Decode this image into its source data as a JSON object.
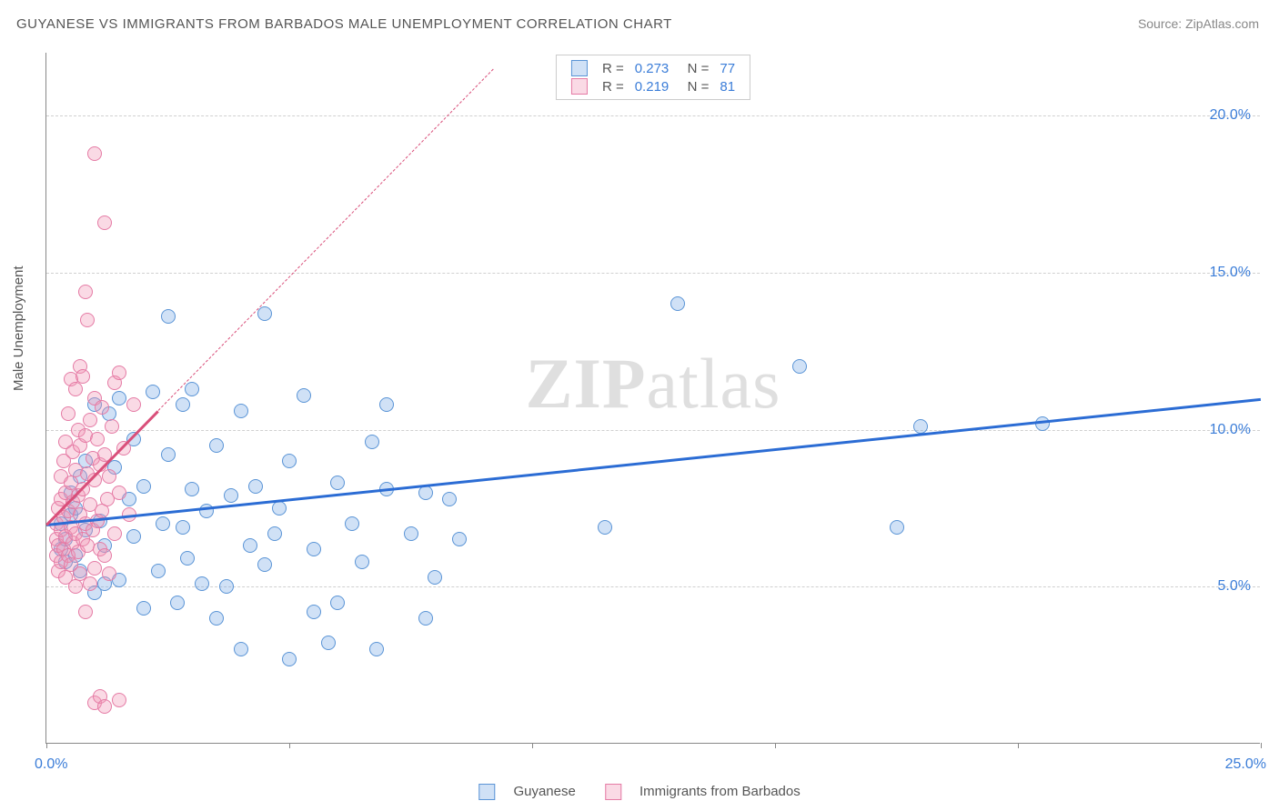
{
  "title": "GUYANESE VS IMMIGRANTS FROM BARBADOS MALE UNEMPLOYMENT CORRELATION CHART",
  "source": "Source: ZipAtlas.com",
  "y_axis_label": "Male Unemployment",
  "watermark_bold": "ZIP",
  "watermark_rest": "atlas",
  "chart": {
    "type": "scatter",
    "xlim": [
      0,
      25
    ],
    "ylim": [
      0,
      22
    ],
    "x_ticks": [
      0,
      5,
      10,
      15,
      20,
      25
    ],
    "y_gridlines": [
      5,
      10,
      15,
      20
    ],
    "y_tick_labels": [
      "5.0%",
      "10.0%",
      "15.0%",
      "20.0%"
    ],
    "x_origin_label": "0.0%",
    "x_max_label": "25.0%",
    "background_color": "#ffffff",
    "grid_color": "#d0d0d0",
    "axis_color": "#888888",
    "series": [
      {
        "name": "Guyanese",
        "color_fill": "rgba(120,170,230,0.35)",
        "color_stroke": "#5a94d6",
        "R": "0.273",
        "N": "77",
        "trend": {
          "x1": 0,
          "y1": 7.0,
          "x2": 25,
          "y2": 11.0,
          "solid_until_x": 25,
          "color": "#2b6cd4"
        },
        "points": [
          [
            0.3,
            6.2
          ],
          [
            0.3,
            7.0
          ],
          [
            0.4,
            5.8
          ],
          [
            0.4,
            6.5
          ],
          [
            0.5,
            7.3
          ],
          [
            0.5,
            8.0
          ],
          [
            0.6,
            6.0
          ],
          [
            0.6,
            7.5
          ],
          [
            0.7,
            5.5
          ],
          [
            0.7,
            8.5
          ],
          [
            0.8,
            6.8
          ],
          [
            0.8,
            9.0
          ],
          [
            1.0,
            4.8
          ],
          [
            1.0,
            10.8
          ],
          [
            1.1,
            7.1
          ],
          [
            1.2,
            6.3
          ],
          [
            1.3,
            10.5
          ],
          [
            1.4,
            8.8
          ],
          [
            1.5,
            5.2
          ],
          [
            1.5,
            11.0
          ],
          [
            1.7,
            7.8
          ],
          [
            1.8,
            6.6
          ],
          [
            1.8,
            9.7
          ],
          [
            2.0,
            4.3
          ],
          [
            2.0,
            8.2
          ],
          [
            2.2,
            11.2
          ],
          [
            2.3,
            5.5
          ],
          [
            2.4,
            7.0
          ],
          [
            2.5,
            9.2
          ],
          [
            2.5,
            13.6
          ],
          [
            2.7,
            4.5
          ],
          [
            2.8,
            10.8
          ],
          [
            2.8,
            6.9
          ],
          [
            3.0,
            8.1
          ],
          [
            3.0,
            11.3
          ],
          [
            3.2,
            5.1
          ],
          [
            3.3,
            7.4
          ],
          [
            3.5,
            9.5
          ],
          [
            3.5,
            4.0
          ],
          [
            3.8,
            7.9
          ],
          [
            4.0,
            3.0
          ],
          [
            4.0,
            10.6
          ],
          [
            4.2,
            6.3
          ],
          [
            4.3,
            8.2
          ],
          [
            4.5,
            5.7
          ],
          [
            4.5,
            13.7
          ],
          [
            4.8,
            7.5
          ],
          [
            5.0,
            2.7
          ],
          [
            5.0,
            9.0
          ],
          [
            5.3,
            11.1
          ],
          [
            5.5,
            6.2
          ],
          [
            5.8,
            3.2
          ],
          [
            6.0,
            8.3
          ],
          [
            6.0,
            4.5
          ],
          [
            6.3,
            7.0
          ],
          [
            6.5,
            5.8
          ],
          [
            6.8,
            3.0
          ],
          [
            7.0,
            8.1
          ],
          [
            7.0,
            10.8
          ],
          [
            7.5,
            6.7
          ],
          [
            7.8,
            8.0
          ],
          [
            8.0,
            5.3
          ],
          [
            8.3,
            7.8
          ],
          [
            8.5,
            6.5
          ],
          [
            11.5,
            6.9
          ],
          [
            13.0,
            14.0
          ],
          [
            15.5,
            12.0
          ],
          [
            17.5,
            6.9
          ],
          [
            18.0,
            10.1
          ],
          [
            20.5,
            10.2
          ],
          [
            7.8,
            4.0
          ],
          [
            4.7,
            6.7
          ],
          [
            3.7,
            5.0
          ],
          [
            2.9,
            5.9
          ],
          [
            5.5,
            4.2
          ],
          [
            6.7,
            9.6
          ],
          [
            1.2,
            5.1
          ]
        ]
      },
      {
        "name": "Immigrants from Barbados",
        "color_fill": "rgba(240,150,180,0.35)",
        "color_stroke": "#e57ba5",
        "R": "0.219",
        "N": "81",
        "trend": {
          "x1": 0,
          "y1": 7.0,
          "x2": 9.2,
          "y2": 21.5,
          "solid_until_x": 2.3,
          "color": "#d94f7a"
        },
        "points": [
          [
            0.2,
            6.0
          ],
          [
            0.2,
            6.5
          ],
          [
            0.2,
            7.0
          ],
          [
            0.25,
            5.5
          ],
          [
            0.25,
            6.3
          ],
          [
            0.25,
            7.5
          ],
          [
            0.3,
            5.8
          ],
          [
            0.3,
            6.8
          ],
          [
            0.3,
            7.8
          ],
          [
            0.3,
            8.5
          ],
          [
            0.35,
            6.2
          ],
          [
            0.35,
            7.2
          ],
          [
            0.35,
            9.0
          ],
          [
            0.4,
            5.3
          ],
          [
            0.4,
            6.6
          ],
          [
            0.4,
            8.0
          ],
          [
            0.4,
            9.6
          ],
          [
            0.45,
            6.0
          ],
          [
            0.45,
            7.4
          ],
          [
            0.45,
            10.5
          ],
          [
            0.5,
            5.7
          ],
          [
            0.5,
            6.9
          ],
          [
            0.5,
            8.3
          ],
          [
            0.5,
            11.6
          ],
          [
            0.55,
            6.4
          ],
          [
            0.55,
            7.7
          ],
          [
            0.55,
            9.3
          ],
          [
            0.6,
            5.0
          ],
          [
            0.6,
            6.7
          ],
          [
            0.6,
            8.7
          ],
          [
            0.6,
            11.3
          ],
          [
            0.65,
            6.1
          ],
          [
            0.65,
            7.9
          ],
          [
            0.65,
            10.0
          ],
          [
            0.7,
            5.4
          ],
          [
            0.7,
            7.3
          ],
          [
            0.7,
            9.5
          ],
          [
            0.7,
            12.0
          ],
          [
            0.75,
            6.5
          ],
          [
            0.75,
            8.1
          ],
          [
            0.75,
            11.7
          ],
          [
            0.8,
            4.2
          ],
          [
            0.8,
            7.0
          ],
          [
            0.8,
            9.8
          ],
          [
            0.8,
            14.4
          ],
          [
            0.85,
            6.3
          ],
          [
            0.85,
            8.6
          ],
          [
            0.85,
            13.5
          ],
          [
            0.9,
            5.1
          ],
          [
            0.9,
            7.6
          ],
          [
            0.9,
            10.3
          ],
          [
            0.95,
            6.8
          ],
          [
            0.95,
            9.1
          ],
          [
            1.0,
            1.3
          ],
          [
            1.0,
            5.6
          ],
          [
            1.0,
            8.4
          ],
          [
            1.0,
            11.0
          ],
          [
            1.0,
            18.8
          ],
          [
            1.05,
            7.1
          ],
          [
            1.05,
            9.7
          ],
          [
            1.1,
            1.5
          ],
          [
            1.1,
            6.2
          ],
          [
            1.1,
            8.9
          ],
          [
            1.15,
            7.4
          ],
          [
            1.15,
            10.7
          ],
          [
            1.2,
            1.2
          ],
          [
            1.2,
            6.0
          ],
          [
            1.2,
            9.2
          ],
          [
            1.2,
            16.6
          ],
          [
            1.25,
            7.8
          ],
          [
            1.3,
            5.4
          ],
          [
            1.3,
            8.5
          ],
          [
            1.35,
            10.1
          ],
          [
            1.4,
            6.7
          ],
          [
            1.4,
            11.5
          ],
          [
            1.5,
            8.0
          ],
          [
            1.5,
            11.8
          ],
          [
            1.6,
            9.4
          ],
          [
            1.7,
            7.3
          ],
          [
            1.8,
            10.8
          ],
          [
            1.5,
            1.4
          ]
        ]
      }
    ]
  },
  "legend_top": {
    "rows": [
      {
        "swatch": "blue",
        "r_label": "R =",
        "r_val": "0.273",
        "n_label": "N =",
        "n_val": "77"
      },
      {
        "swatch": "pink",
        "r_label": "R =",
        "r_val": "0.219",
        "n_label": "N =",
        "n_val": "81"
      }
    ]
  },
  "legend_bottom": [
    {
      "swatch": "blue",
      "label": "Guyanese"
    },
    {
      "swatch": "pink",
      "label": "Immigrants from Barbados"
    }
  ]
}
